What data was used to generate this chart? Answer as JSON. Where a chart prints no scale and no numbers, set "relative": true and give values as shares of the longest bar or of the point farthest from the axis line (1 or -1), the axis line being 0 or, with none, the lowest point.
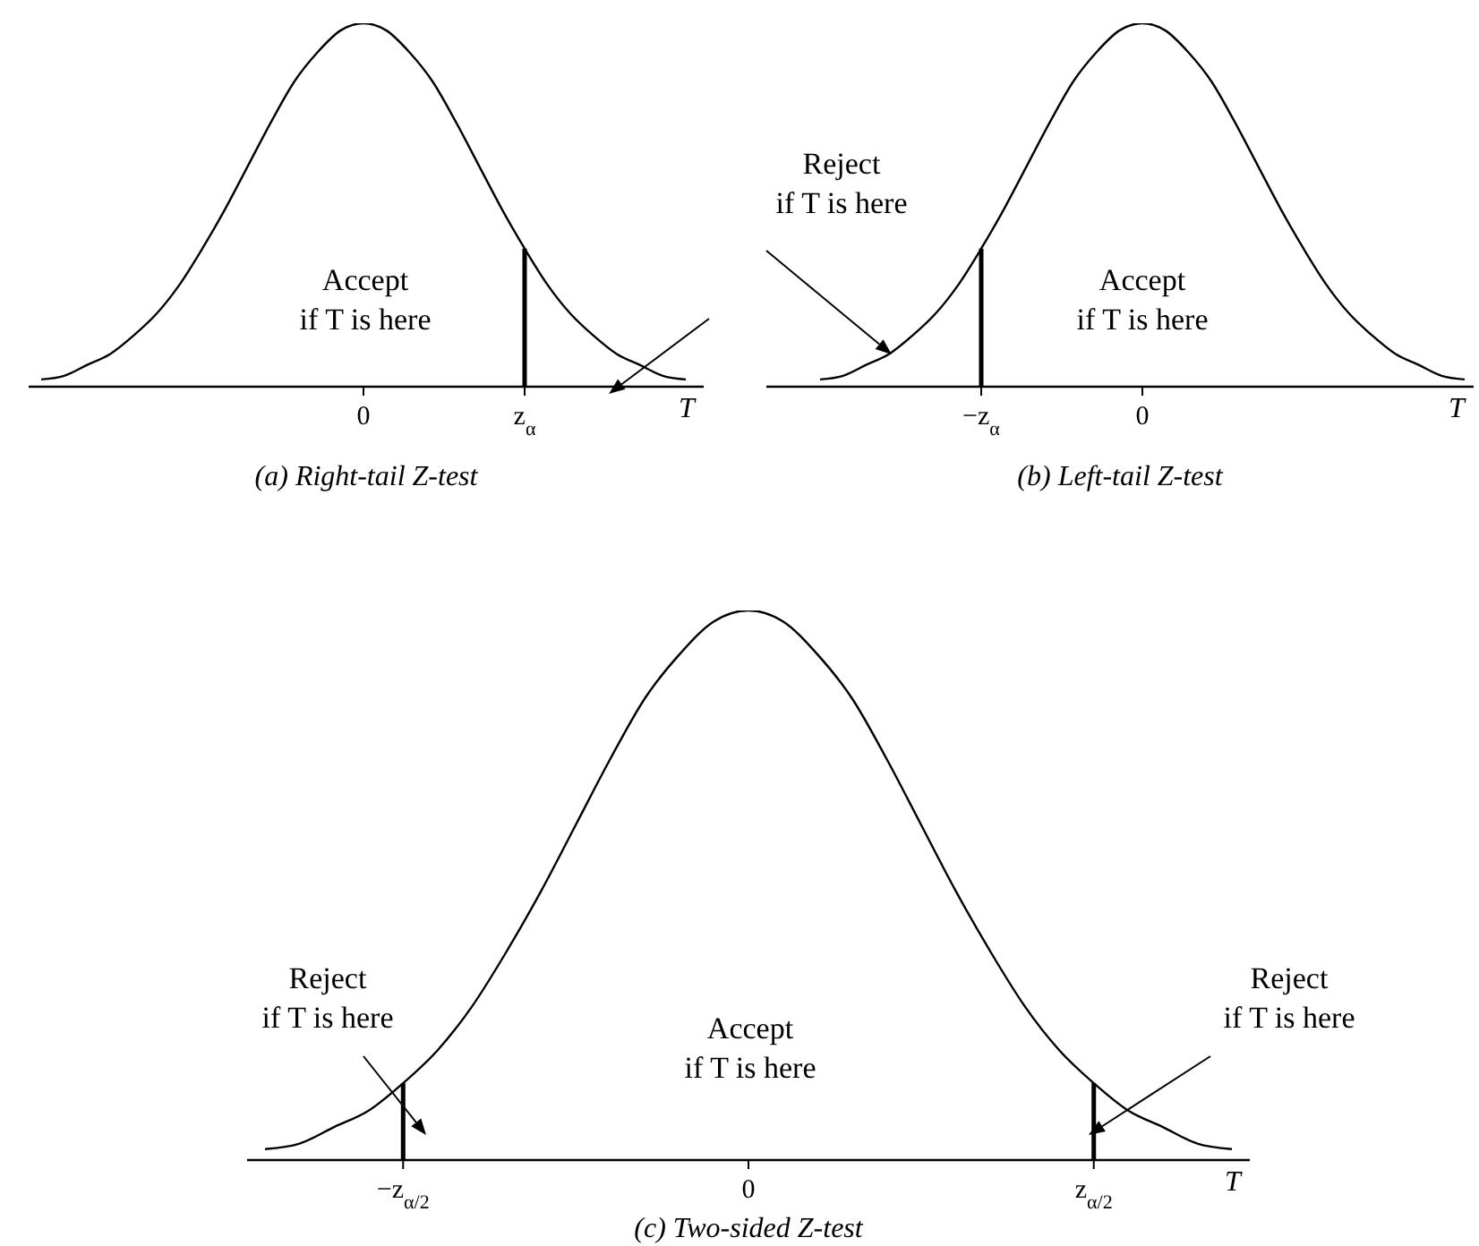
{
  "chart_data": [
    {
      "type": "line",
      "relative": true,
      "title": "(a) Right-tail Z-test",
      "xlabel": "T",
      "categories": [
        null,
        null,
        null,
        null,
        null,
        null,
        null,
        null,
        null,
        null,
        null,
        null,
        null,
        null,
        "0",
        null,
        null,
        null,
        null,
        null,
        null,
        "z$_{α}$",
        null,
        null,
        null,
        null,
        null,
        null,
        null
      ],
      "series": [
        {
          "color": "#000000",
          "values": [
            0.02,
            0.03,
            0.06,
            0.09,
            0.14,
            0.2,
            0.28,
            0.38,
            0.49,
            0.61,
            0.73,
            0.84,
            0.92,
            0.98,
            1,
            0.98,
            0.92,
            0.84,
            0.73,
            0.61,
            0.49,
            0.38,
            0.28,
            0.2,
            0.14,
            0.09,
            0.06,
            0.03,
            0.02
          ]
        }
      ],
      "ref_lines": [
        {
          "axis": "x",
          "value": "z$_{α}$",
          "color": "#000000"
        }
      ],
      "annotations": [
        "Accept\nif T is here",
        "Reject\nif T is here"
      ]
    },
    {
      "type": "line",
      "relative": true,
      "title": "(b) Left-tail Z-test",
      "xlabel": "T",
      "categories": [
        null,
        null,
        null,
        null,
        null,
        null,
        null,
        "−z$_{α}$",
        null,
        null,
        null,
        null,
        null,
        null,
        "0",
        null,
        null,
        null,
        null,
        null,
        null,
        null,
        null,
        null,
        null,
        null,
        null,
        null,
        null
      ],
      "series": [
        {
          "color": "#000000",
          "values": [
            0.02,
            0.03,
            0.06,
            0.09,
            0.14,
            0.2,
            0.28,
            0.38,
            0.49,
            0.61,
            0.73,
            0.84,
            0.92,
            0.98,
            1,
            0.98,
            0.92,
            0.84,
            0.73,
            0.61,
            0.49,
            0.38,
            0.28,
            0.2,
            0.14,
            0.09,
            0.06,
            0.03,
            0.02
          ]
        }
      ],
      "ref_lines": [
        {
          "axis": "x",
          "value": "−z$_{α}$",
          "color": "#000000"
        }
      ],
      "annotations": [
        "Accept\nif T is here"
      ]
    },
    {
      "type": "line",
      "relative": true,
      "title": "(c) Two-sided Z-test",
      "xlabel": "T",
      "categories": [
        null,
        null,
        null,
        null,
        "−z$_{α/2}$",
        null,
        null,
        null,
        null,
        null,
        null,
        null,
        null,
        null,
        "0",
        null,
        null,
        null,
        null,
        null,
        null,
        null,
        null,
        null,
        "z$_{α/2}$",
        null,
        null,
        null,
        null
      ],
      "series": [
        {
          "color": "#000000",
          "values": [
            0.02,
            0.03,
            0.06,
            0.09,
            0.14,
            0.2,
            0.28,
            0.38,
            0.49,
            0.61,
            0.73,
            0.84,
            0.92,
            0.98,
            1,
            0.98,
            0.92,
            0.84,
            0.73,
            0.61,
            0.49,
            0.38,
            0.28,
            0.2,
            0.14,
            0.09,
            0.06,
            0.03,
            0.02
          ]
        }
      ],
      "ref_lines": [
        {
          "axis": "x",
          "value": "−z$_{α/2}$",
          "color": "#000000"
        },
        {
          "axis": "x",
          "value": "z$_{α/2}$",
          "color": "#000000"
        }
      ],
      "annotations": [
        "Reject\nif T is here",
        "Accept\nif T is here",
        "Reject\nif T is here"
      ]
    }
  ]
}
